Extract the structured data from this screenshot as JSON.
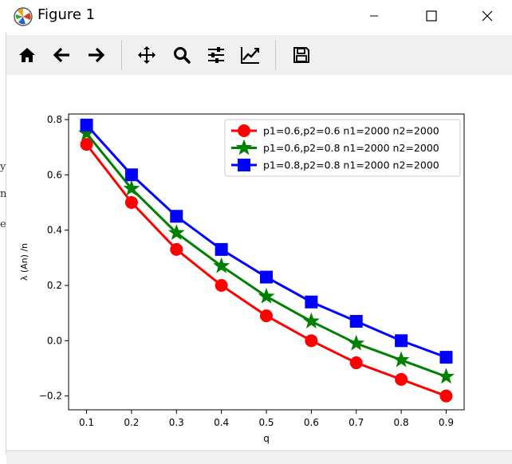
{
  "window": {
    "title": "Figure 1"
  },
  "toolbar": {
    "buttons": [
      {
        "icon": "home-icon",
        "name": "home-button"
      },
      {
        "icon": "back-arrow-icon",
        "name": "back-button"
      },
      {
        "icon": "forward-arrow-icon",
        "name": "forward-button"
      },
      {
        "icon": "pan-move-icon",
        "name": "pan-button"
      },
      {
        "icon": "zoom-magnifier-icon",
        "name": "zoom-button"
      },
      {
        "icon": "subplots-sliders-icon",
        "name": "configure-subplots-button"
      },
      {
        "icon": "edit-axes-line-icon",
        "name": "edit-axes-button"
      },
      {
        "icon": "save-floppy-icon",
        "name": "save-button"
      }
    ]
  },
  "left_edge": {
    "chars": [
      "y",
      "n",
      "e"
    ]
  },
  "chart_data": {
    "type": "line",
    "title": "",
    "xlabel": "q",
    "ylabel": "λ (An) /n",
    "xlim": [
      0.06,
      0.94
    ],
    "ylim": [
      -0.25,
      0.82
    ],
    "xticks": [
      "0.1",
      "0.2",
      "0.3",
      "0.4",
      "0.5",
      "0.6",
      "0.7",
      "0.8",
      "0.9"
    ],
    "yticks": [
      "−0.2",
      "0.0",
      "0.2",
      "0.4",
      "0.6",
      "0.8"
    ],
    "grid": false,
    "legend_position": "upper right",
    "x": [
      0.1,
      0.2,
      0.3,
      0.4,
      0.5,
      0.6,
      0.7,
      0.8,
      0.9
    ],
    "series": [
      {
        "name": "p1=0.6,p2=0.6 n1=2000 n2=2000",
        "color": "#ff0000",
        "marker": "circle",
        "values": [
          0.71,
          0.5,
          0.33,
          0.2,
          0.09,
          0.0,
          -0.08,
          -0.14,
          -0.2
        ]
      },
      {
        "name": "p1=0.6,p2=0.8 n1=2000 n2=2000",
        "color": "#008000",
        "marker": "star",
        "values": [
          0.75,
          0.55,
          0.39,
          0.27,
          0.16,
          0.07,
          -0.01,
          -0.07,
          -0.13
        ]
      },
      {
        "name": "p1=0.8,p2=0.8 n1=2000 n2=2000",
        "color": "#0000ff",
        "marker": "square",
        "values": [
          0.78,
          0.6,
          0.45,
          0.33,
          0.23,
          0.14,
          0.07,
          0.0,
          -0.06
        ]
      }
    ]
  }
}
